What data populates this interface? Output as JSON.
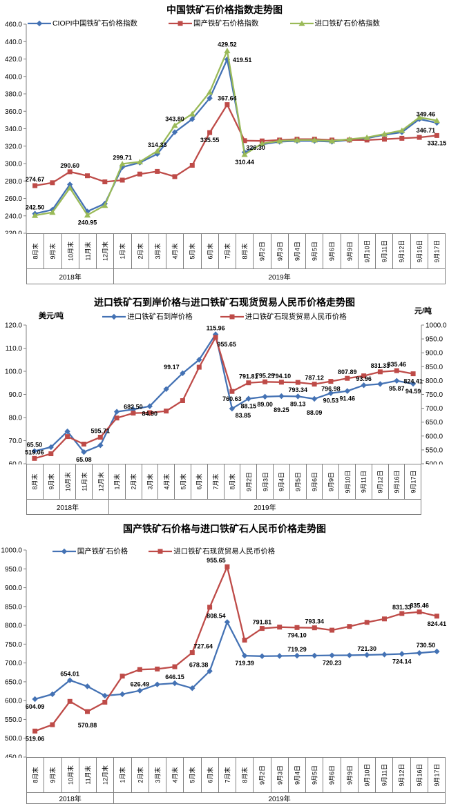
{
  "chart_data": {
    "type": "line",
    "categories": [
      "8月末",
      "9月末",
      "10月末",
      "11月末",
      "12月末",
      "1月末",
      "2月末",
      "3月末",
      "4月末",
      "5月末",
      "6月末",
      "7月末",
      "8月末",
      "9月2日",
      "9月3日",
      "9月4日",
      "9月5日",
      "9月6日",
      "9月9日",
      "9月10日",
      "9月11日",
      "9月12日",
      "9月16日",
      "9月17日"
    ],
    "year_groups": [
      {
        "label": "2018年",
        "span": 5
      },
      {
        "label": "2019年",
        "span": 19
      }
    ],
    "charts": [
      {
        "title": "中国铁矿石价格指数走势图",
        "axis_left": {
          "min": 220,
          "max": 460,
          "step": 20
        },
        "grid": false,
        "legend_position": "top",
        "series": [
          {
            "name": "CIOPI中国铁矿石价格指数",
            "color": "#4472B4",
            "marker": "diamond",
            "axis": "left",
            "values": [
              242.5,
              247,
              276,
              245,
              254,
              296,
              301,
              311,
              336,
              351,
              375,
              419.51,
              313,
              322,
              325,
              326,
              326,
              325,
              327,
              329,
              333,
              336,
              351,
              346.71
            ],
            "point_labels": [
              [
                0,
                "242.50",
                "a"
              ],
              [
                11,
                "419.51",
                "r"
              ],
              [
                23,
                "346.71",
                "bl"
              ]
            ]
          },
          {
            "name": "国产铁矿石价格指数",
            "color": "#BE4B48",
            "marker": "square",
            "axis": "left",
            "values": [
              274.67,
              278,
              290.6,
              286,
              279,
              281,
              288,
              291,
              285,
              298,
              335.55,
              367.64,
              326.3,
              326,
              327,
              328,
              328,
              327,
              327,
              327,
              328,
              329,
              330,
              332.15
            ],
            "point_labels": [
              [
                0,
                "274.67",
                "a"
              ],
              [
                2,
                "290.60",
                "a"
              ],
              [
                10,
                "335.55",
                "b"
              ],
              [
                11,
                "367.64",
                "a"
              ],
              [
                12,
                "326.30",
                "br"
              ],
              [
                23,
                "332.15",
                "b"
              ]
            ]
          },
          {
            "name": "进口铁矿石价格指数",
            "color": "#9ABA58",
            "marker": "triangle",
            "axis": "left",
            "values": [
              240.5,
              244,
              272,
              240.95,
              252,
              299.71,
              302,
              314.33,
              343.8,
              357,
              382,
              429.52,
              310.44,
              323,
              326,
              327,
              327,
              326,
              328,
              330,
              334,
              338,
              353,
              349.46
            ],
            "point_labels": [
              [
                3,
                "240.95",
                "b"
              ],
              [
                5,
                "299.71",
                "a"
              ],
              [
                7,
                "314.33",
                "a"
              ],
              [
                8,
                "343.80",
                "a"
              ],
              [
                11,
                "429.52",
                "a"
              ],
              [
                12,
                "310.44",
                "b"
              ],
              [
                23,
                "349.46",
                "al"
              ]
            ]
          }
        ]
      },
      {
        "title": "进口铁矿石到岸价格与进口铁矿石现货贸易人民币价格走势图",
        "unit_left": "美元/吨",
        "unit_right": "元/吨",
        "axis_left": {
          "min": 60,
          "max": 120,
          "step": 10
        },
        "axis_right": {
          "min": 500,
          "max": 1000,
          "step": 50
        },
        "grid": false,
        "legend_position": "top",
        "series": [
          {
            "name": "进口铁矿石到岸价格",
            "color": "#4472B4",
            "marker": "diamond",
            "axis": "left",
            "values": [
              65.5,
              67.2,
              74.0,
              65.08,
              68.0,
              82.5,
              83.5,
              84.9,
              92.3,
              99.17,
              105.0,
              115.96,
              83.85,
              88.15,
              89.0,
              89.25,
              89.13,
              88.09,
              90.53,
              91.46,
              93.96,
              94.5,
              95.87,
              94.59
            ],
            "point_labels": [
              [
                0,
                "65.50",
                "a"
              ],
              [
                3,
                "65.08",
                "b"
              ],
              [
                7,
                "84.90",
                "b"
              ],
              [
                9,
                "99.17",
                "al"
              ],
              [
                11,
                "115.96",
                "a"
              ],
              [
                12,
                "83.85",
                "br"
              ],
              [
                13,
                "88.15",
                "b"
              ],
              [
                14,
                "89.00",
                "b"
              ],
              [
                15,
                "89.25",
                "B"
              ],
              [
                16,
                "89.13",
                "b"
              ],
              [
                17,
                "88.09",
                "B"
              ],
              [
                18,
                "90.53",
                "b"
              ],
              [
                19,
                "91.46",
                "b"
              ],
              [
                20,
                "93.96",
                "a"
              ],
              [
                22,
                "95.87",
                "b"
              ],
              [
                23,
                "94.59",
                "b"
              ]
            ]
          },
          {
            "name": "进口铁矿石现货贸易人民币价格",
            "color": "#BE4B48",
            "marker": "square",
            "axis": "right",
            "values": [
              519.06,
              536,
              598,
              570.88,
              595.71,
              665,
              682.5,
              684,
              690,
              727.64,
              848,
              955.65,
              760.63,
              791.81,
              795.29,
              794.1,
              793.34,
              787.12,
              796.98,
              807.89,
              817,
              831.33,
              835.46,
              824.41
            ],
            "point_labels": [
              [
                0,
                "519.06",
                "a"
              ],
              [
                4,
                "595.71",
                "a"
              ],
              [
                6,
                "682.50",
                "a"
              ],
              [
                11,
                "955.65",
                "br"
              ],
              [
                12,
                "760.63",
                "b"
              ],
              [
                13,
                "791.81",
                "a"
              ],
              [
                14,
                "795.29",
                "a"
              ],
              [
                15,
                "794.10",
                "a"
              ],
              [
                16,
                "793.34",
                "b"
              ],
              [
                17,
                "787.12",
                "a"
              ],
              [
                18,
                "796.98",
                "b"
              ],
              [
                19,
                "807.89",
                "a"
              ],
              [
                21,
                "831.33",
                "a"
              ],
              [
                22,
                "835.46",
                "a"
              ],
              [
                23,
                "824.41",
                "b"
              ]
            ]
          }
        ]
      },
      {
        "title": "国产铁矿石价格与进口铁矿石人民币价格走势图",
        "axis_left": {
          "min": 450,
          "max": 1000,
          "step": 50
        },
        "grid": false,
        "legend_position": "top",
        "series": [
          {
            "name": "国产铁矿石价格",
            "color": "#4472B4",
            "marker": "diamond",
            "axis": "left",
            "values": [
              604.09,
              617,
              654.01,
              638,
              613,
              617,
              626.49,
              643,
              646.15,
              633,
              678.38,
              808.54,
              719.39,
              718.0,
              718.5,
              719.29,
              719.5,
              720.23,
              720.5,
              721.3,
              722.5,
              724.14,
              726.5,
              730.5
            ],
            "point_labels": [
              [
                0,
                "604.09",
                "b"
              ],
              [
                2,
                "654.01",
                "a"
              ],
              [
                6,
                "626.49",
                "a"
              ],
              [
                8,
                "646.15",
                "a"
              ],
              [
                10,
                "678.38",
                "al"
              ],
              [
                11,
                "808.54",
                "al"
              ],
              [
                12,
                "719.39",
                "b"
              ],
              [
                15,
                "719.29",
                "a"
              ],
              [
                17,
                "720.23",
                "b"
              ],
              [
                19,
                "721.30",
                "a"
              ],
              [
                21,
                "724.14",
                "b"
              ],
              [
                23,
                "730.50",
                "al"
              ]
            ]
          },
          {
            "name": "进口铁矿石现货贸易人民币价格",
            "color": "#BE4B48",
            "marker": "square",
            "axis": "left",
            "values": [
              519.06,
              536,
              598,
              570.88,
              595.71,
              665,
              682.5,
              684,
              690,
              727.64,
              848,
              955.65,
              760.63,
              791.81,
              795.29,
              794.1,
              793.34,
              787.12,
              796.98,
              807.89,
              817,
              831.33,
              835.46,
              824.41
            ],
            "point_labels": [
              [
                0,
                "519.06",
                "b"
              ],
              [
                3,
                "570.88",
                "B"
              ],
              [
                9,
                "727.64",
                "ar"
              ],
              [
                11,
                "955.65",
                "al"
              ],
              [
                13,
                "791.81",
                "a"
              ],
              [
                15,
                "794.10",
                "b"
              ],
              [
                16,
                "793.34",
                "a"
              ],
              [
                21,
                "831.33",
                "a"
              ],
              [
                22,
                "835.46",
                "a"
              ],
              [
                23,
                "824.41",
                "b"
              ]
            ]
          }
        ]
      }
    ]
  }
}
